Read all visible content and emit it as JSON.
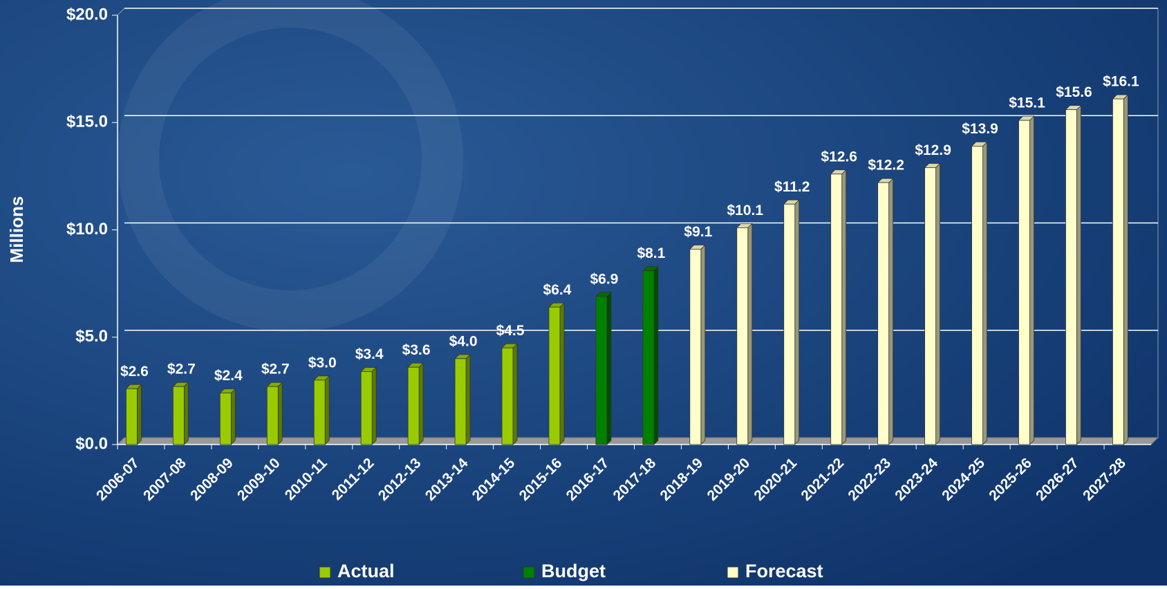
{
  "chart_data": {
    "type": "bar",
    "y_label": "Millions",
    "categories": [
      "2006-07",
      "2007-08",
      "2008-09",
      "2009-10",
      "2010-11",
      "2011-12",
      "2012-13",
      "2013-14",
      "2014-15",
      "2015-16",
      "2016-17",
      "2017-18",
      "2018-19",
      "2019-20",
      "2020-21",
      "2021-22",
      "2022-23",
      "2023-24",
      "2024-25",
      "2025-26",
      "2026-27",
      "2027-28"
    ],
    "series": [
      {
        "name": "Actual",
        "color": "#99cc00",
        "values": [
          2.6,
          2.7,
          2.4,
          2.7,
          3.0,
          3.4,
          3.6,
          4.0,
          4.5,
          6.4,
          null,
          null,
          null,
          null,
          null,
          null,
          null,
          null,
          null,
          null,
          null,
          null
        ],
        "value_labels": [
          "$2.6",
          "$2.7",
          "$2.4",
          "$2.7",
          "$3.0",
          "$3.4",
          "$3.6",
          "$4.0",
          "$4.5",
          "$6.4",
          null,
          null,
          null,
          null,
          null,
          null,
          null,
          null,
          null,
          null,
          null,
          null
        ]
      },
      {
        "name": "Budget",
        "color": "#008000",
        "values": [
          null,
          null,
          null,
          null,
          null,
          null,
          null,
          null,
          null,
          null,
          6.9,
          8.1,
          null,
          null,
          null,
          null,
          null,
          null,
          null,
          null,
          null,
          null
        ],
        "value_labels": [
          null,
          null,
          null,
          null,
          null,
          null,
          null,
          null,
          null,
          null,
          "$6.9",
          "$8.1",
          null,
          null,
          null,
          null,
          null,
          null,
          null,
          null,
          null,
          null
        ]
      },
      {
        "name": "Forecast",
        "color": "#ffffcc",
        "values": [
          null,
          null,
          null,
          null,
          null,
          null,
          null,
          null,
          null,
          null,
          null,
          null,
          9.1,
          10.1,
          11.2,
          12.6,
          12.2,
          12.9,
          13.9,
          15.1,
          15.6,
          16.1
        ],
        "value_labels": [
          null,
          null,
          null,
          null,
          null,
          null,
          null,
          null,
          null,
          null,
          null,
          null,
          "$9.1",
          "$10.1",
          "$11.2",
          "$12.6",
          "$12.2",
          "$12.9",
          "$13.9",
          "$15.1",
          "$15.6",
          "$16.1"
        ]
      }
    ],
    "ylim": [
      0,
      20
    ],
    "yticks": [
      {
        "value": 0,
        "label": "$0.0"
      },
      {
        "value": 5,
        "label": "$5.0"
      },
      {
        "value": 10,
        "label": "$10.0"
      },
      {
        "value": 15,
        "label": "$15.0"
      },
      {
        "value": 20,
        "label": "$20.0"
      }
    ],
    "grid": true
  }
}
